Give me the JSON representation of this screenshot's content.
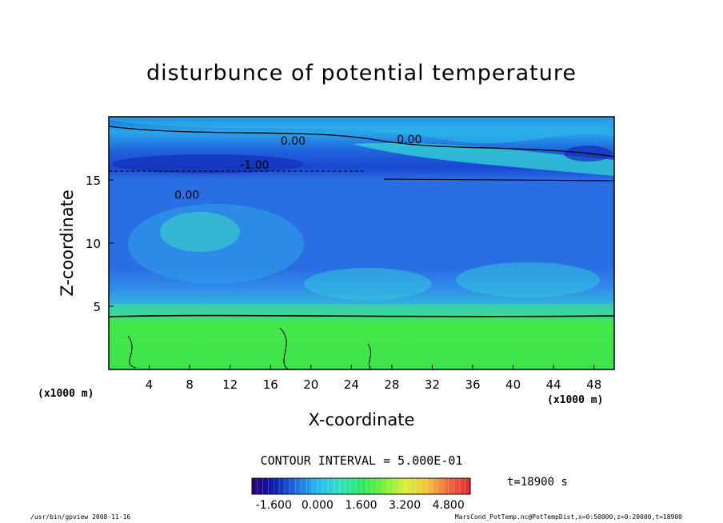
{
  "chart_data": {
    "type": "heatmap",
    "title": "disturbunce of potential temperature",
    "xlabel": "X-coordinate",
    "ylabel": "Z-coordinate",
    "x_unit": "(x1000 m)",
    "y_unit": "(x1000 m)",
    "xlim": [
      0,
      50
    ],
    "ylim": [
      0,
      20
    ],
    "x_ticks": [
      4,
      8,
      12,
      16,
      20,
      24,
      28,
      32,
      36,
      40,
      44,
      48
    ],
    "y_ticks": [
      5,
      10,
      15
    ],
    "contour_labels": [
      {
        "text": "0.00",
        "x": 17,
        "z": 17.8
      },
      {
        "text": "0.00",
        "x": 28.5,
        "z": 17.9
      },
      {
        "text": "-1.00",
        "x": 13,
        "z": 15.9
      },
      {
        "text": "0.00",
        "x": 6.5,
        "z": 13.5
      }
    ],
    "contour_interval_text": "CONTOUR INTERVAL = 5.000E-01",
    "colorbar": {
      "tick_labels": [
        "-1.600",
        "0.000",
        "1.600",
        "3.200",
        "4.800"
      ],
      "ticks": [
        -1.6,
        0.0,
        1.6,
        3.2,
        4.8
      ],
      "range": [
        -2.4,
        5.6
      ],
      "colors": [
        "#2a0070",
        "#0b1cae",
        "#1d6ae0",
        "#29b7ee",
        "#35e0c4",
        "#2ee86a",
        "#74ef3a",
        "#d9f03a",
        "#f0c43e",
        "#ef6a3a",
        "#e02a3a"
      ]
    },
    "time_label": "t=18900 s"
  },
  "footer": {
    "left": "/usr/bin/gpview   2008-11-16",
    "right": "MarsCond_PotTemp.nc@PotTempDist,x=0:50000,z=0:20000,t=18900"
  },
  "colors": {
    "upper_blue": "#2a70e6",
    "mid_blue": "#1f5be0",
    "cyan_band": "#32c6dc",
    "lower_green": "#3ee24c"
  }
}
